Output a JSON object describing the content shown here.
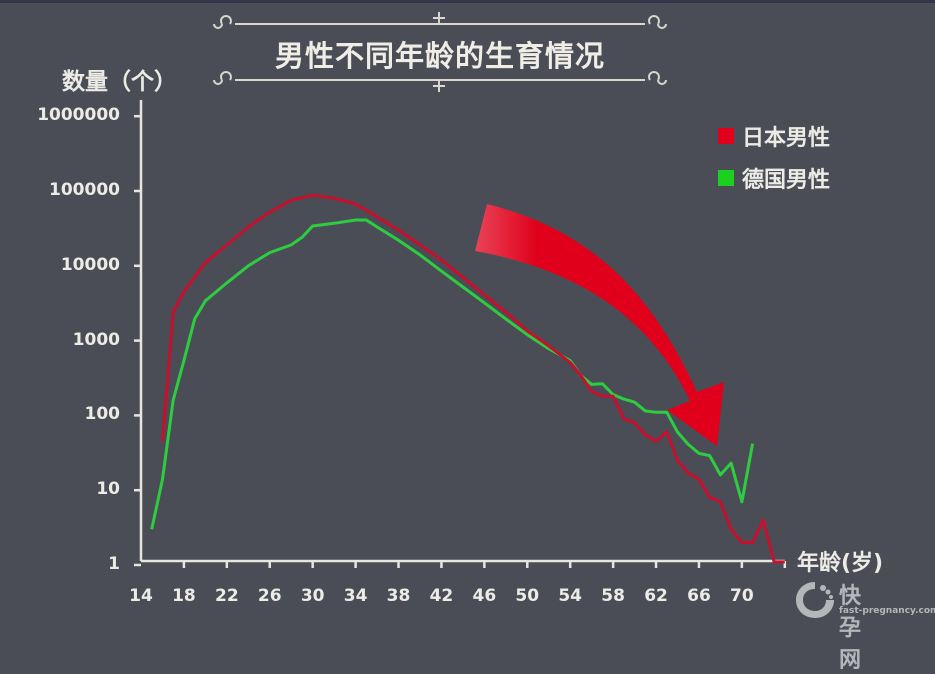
{
  "header": {
    "title": "男性不同年龄的生育情况"
  },
  "axes": {
    "y_label": "数量（个）",
    "x_label": "年龄(岁)",
    "y_ticks": [
      "1000000",
      "100000",
      "10000",
      "1000",
      "100",
      "10",
      "1"
    ],
    "x_ticks": [
      "14",
      "18",
      "22",
      "26",
      "30",
      "34",
      "38",
      "42",
      "46",
      "50",
      "54",
      "58",
      "62",
      "66",
      "70"
    ]
  },
  "legend": [
    {
      "label": "日本男性",
      "color": "#e0001b"
    },
    {
      "label": "德国男性",
      "color": "#1ed01e"
    }
  ],
  "watermark": {
    "name": "快孕网",
    "url": "fast-pregnancy.com"
  },
  "chart_data": {
    "type": "line",
    "title": "男性不同年龄的生育情况",
    "xlabel": "年龄(岁)",
    "ylabel": "数量（个）",
    "y_scale": "log",
    "ylim": [
      1,
      1000000
    ],
    "xlim": [
      14,
      74
    ],
    "grid": false,
    "legend_position": "top-right",
    "annotations": [
      "large red curved arrow pointing downward toward older ages (~ages 46–68)"
    ],
    "series": [
      {
        "name": "日本男性",
        "color": "#c8102e",
        "x": [
          16,
          17,
          18,
          20,
          22,
          24,
          26,
          28,
          30,
          32,
          34,
          36,
          38,
          40,
          42,
          44,
          46,
          48,
          50,
          52,
          54,
          55,
          56,
          57,
          58,
          59,
          60,
          61,
          62,
          63,
          64,
          65,
          66,
          67,
          68,
          69,
          70,
          71,
          72,
          73,
          74
        ],
        "values": [
          45,
          2400,
          4500,
          11000,
          19000,
          33000,
          52000,
          75000,
          88000,
          80000,
          67000,
          45000,
          30000,
          19000,
          12000,
          7000,
          4100,
          2400,
          1350,
          850,
          510,
          340,
          210,
          180,
          180,
          90,
          80,
          55,
          45,
          60,
          25,
          17,
          14,
          8,
          7,
          3,
          2,
          2,
          4,
          1.1,
          1.1
        ]
      },
      {
        "name": "德国男性",
        "color": "#2ecc40",
        "x": [
          15,
          16,
          17,
          18,
          19,
          20,
          22,
          24,
          26,
          28,
          29,
          30,
          32,
          34,
          35,
          36,
          38,
          40,
          42,
          44,
          46,
          48,
          50,
          52,
          54,
          55,
          56,
          57,
          58,
          59,
          60,
          61,
          62,
          63,
          64,
          65,
          66,
          67,
          68,
          69,
          70,
          71
        ],
        "values": [
          3,
          14,
          160,
          540,
          1950,
          3400,
          5900,
          10000,
          15000,
          19000,
          24000,
          34000,
          37000,
          41000,
          41000,
          33000,
          22000,
          14000,
          8500,
          5200,
          3200,
          1950,
          1200,
          780,
          540,
          340,
          260,
          265,
          190,
          165,
          150,
          115,
          110,
          110,
          60,
          41,
          31,
          29,
          16,
          23,
          7,
          42
        ]
      }
    ]
  }
}
